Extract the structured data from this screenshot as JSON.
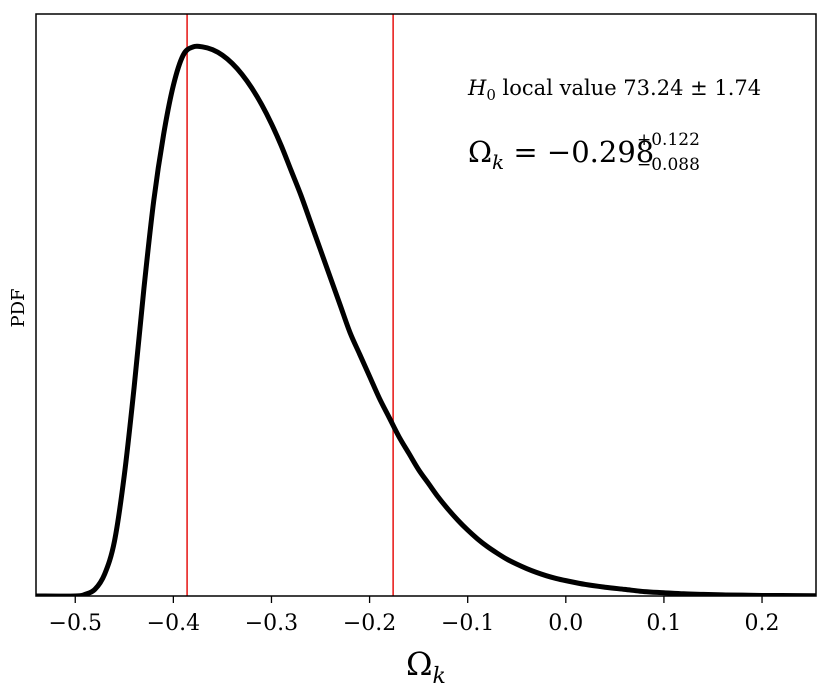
{
  "chart_data": {
    "type": "line",
    "xlabel": "Ω",
    "xlabel_sub": "k",
    "ylabel": "PDF",
    "xlim": [
      -0.54,
      0.255
    ],
    "ylim": [
      0,
      1.06
    ],
    "grid": false,
    "ticks": {
      "x": [
        -0.5,
        -0.4,
        -0.3,
        -0.2,
        -0.1,
        0.0,
        0.1,
        0.2
      ],
      "x_labels": [
        "−0.5",
        "−0.4",
        "−0.3",
        "−0.2",
        "−0.1",
        "0.0",
        "0.1",
        "0.2"
      ]
    },
    "series": [
      {
        "color": "#000000",
        "x": [
          -0.54,
          -0.5,
          -0.49,
          -0.48,
          -0.47,
          -0.46,
          -0.45,
          -0.44,
          -0.43,
          -0.42,
          -0.41,
          -0.4,
          -0.39,
          -0.38,
          -0.37,
          -0.36,
          -0.35,
          -0.34,
          -0.33,
          -0.32,
          -0.31,
          -0.3,
          -0.29,
          -0.28,
          -0.27,
          -0.26,
          -0.25,
          -0.24,
          -0.23,
          -0.22,
          -0.21,
          -0.2,
          -0.19,
          -0.18,
          -0.17,
          -0.16,
          -0.15,
          -0.14,
          -0.13,
          -0.12,
          -0.11,
          -0.1,
          -0.09,
          -0.08,
          -0.07,
          -0.06,
          -0.05,
          -0.04,
          -0.03,
          -0.02,
          -0.01,
          0.0,
          0.02,
          0.04,
          0.06,
          0.08,
          0.1,
          0.12,
          0.14,
          0.16,
          0.18,
          0.2,
          0.22,
          0.255
        ],
        "y": [
          0.0,
          0.0,
          0.003,
          0.012,
          0.04,
          0.1,
          0.22,
          0.38,
          0.56,
          0.72,
          0.84,
          0.93,
          0.985,
          1.0,
          1.0,
          0.995,
          0.985,
          0.97,
          0.95,
          0.925,
          0.895,
          0.86,
          0.82,
          0.775,
          0.73,
          0.68,
          0.63,
          0.58,
          0.53,
          0.48,
          0.44,
          0.4,
          0.36,
          0.325,
          0.29,
          0.26,
          0.23,
          0.205,
          0.18,
          0.158,
          0.138,
          0.12,
          0.104,
          0.09,
          0.078,
          0.067,
          0.058,
          0.05,
          0.043,
          0.037,
          0.032,
          0.028,
          0.021,
          0.016,
          0.012,
          0.008,
          0.006,
          0.004,
          0.003,
          0.002,
          0.0015,
          0.001,
          0.0008,
          0.0005
        ]
      }
    ],
    "vlines": [
      {
        "x": -0.386,
        "color": "#e8211f"
      },
      {
        "x": -0.176,
        "color": "#e8211f"
      }
    ],
    "annotations": {
      "line1_var": "H",
      "line1_sub": "0",
      "line1_text": " local value 73.24 ± 1.74",
      "line2_var": "Ω",
      "line2_sub": "k",
      "line2_text": " = −0.298",
      "line2_sup": "+0.122",
      "line2_subscript": "−0.088"
    }
  }
}
